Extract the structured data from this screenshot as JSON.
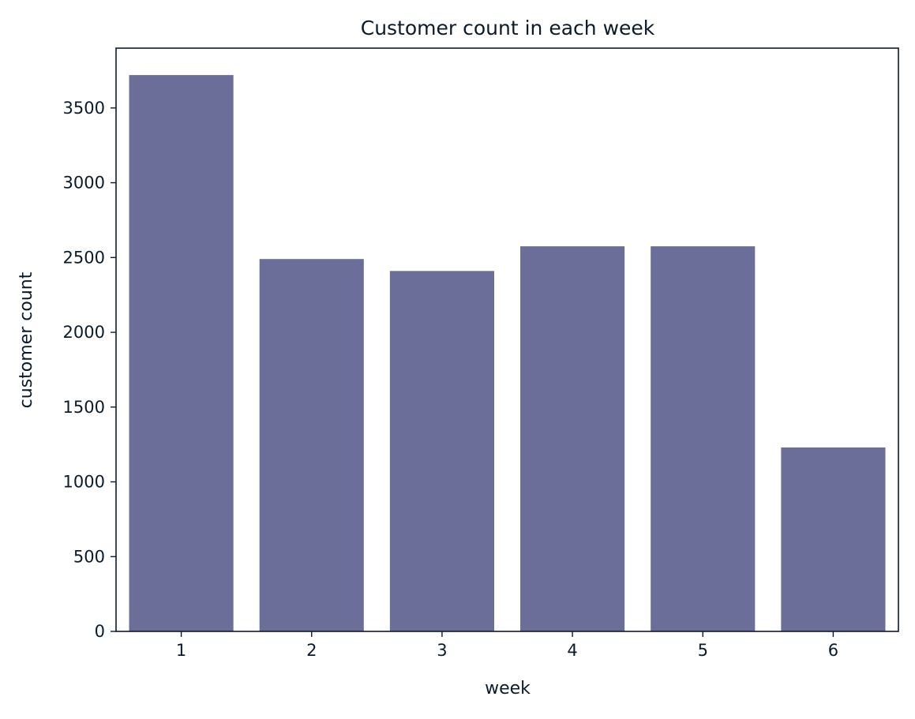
{
  "chart_data": {
    "type": "bar",
    "title": "Customer count in each week",
    "xlabel": "week",
    "ylabel": "customer count",
    "categories": [
      "1",
      "2",
      "3",
      "4",
      "5",
      "6"
    ],
    "values": [
      3720,
      2490,
      2410,
      2575,
      2575,
      1230
    ],
    "ylim": [
      0,
      3900
    ],
    "yticks": [
      0,
      500,
      1000,
      1500,
      2000,
      2500,
      3000,
      3500
    ],
    "ytick_labels": [
      "0",
      "500",
      "1000",
      "1500",
      "2000",
      "2500",
      "3000",
      "3500"
    ],
    "grid": false,
    "legend": "none",
    "colors": {
      "bar": "#6c6e9a",
      "axis": "#0b1b2b",
      "text": "#0b1b2b",
      "background": "#ffffff"
    }
  }
}
